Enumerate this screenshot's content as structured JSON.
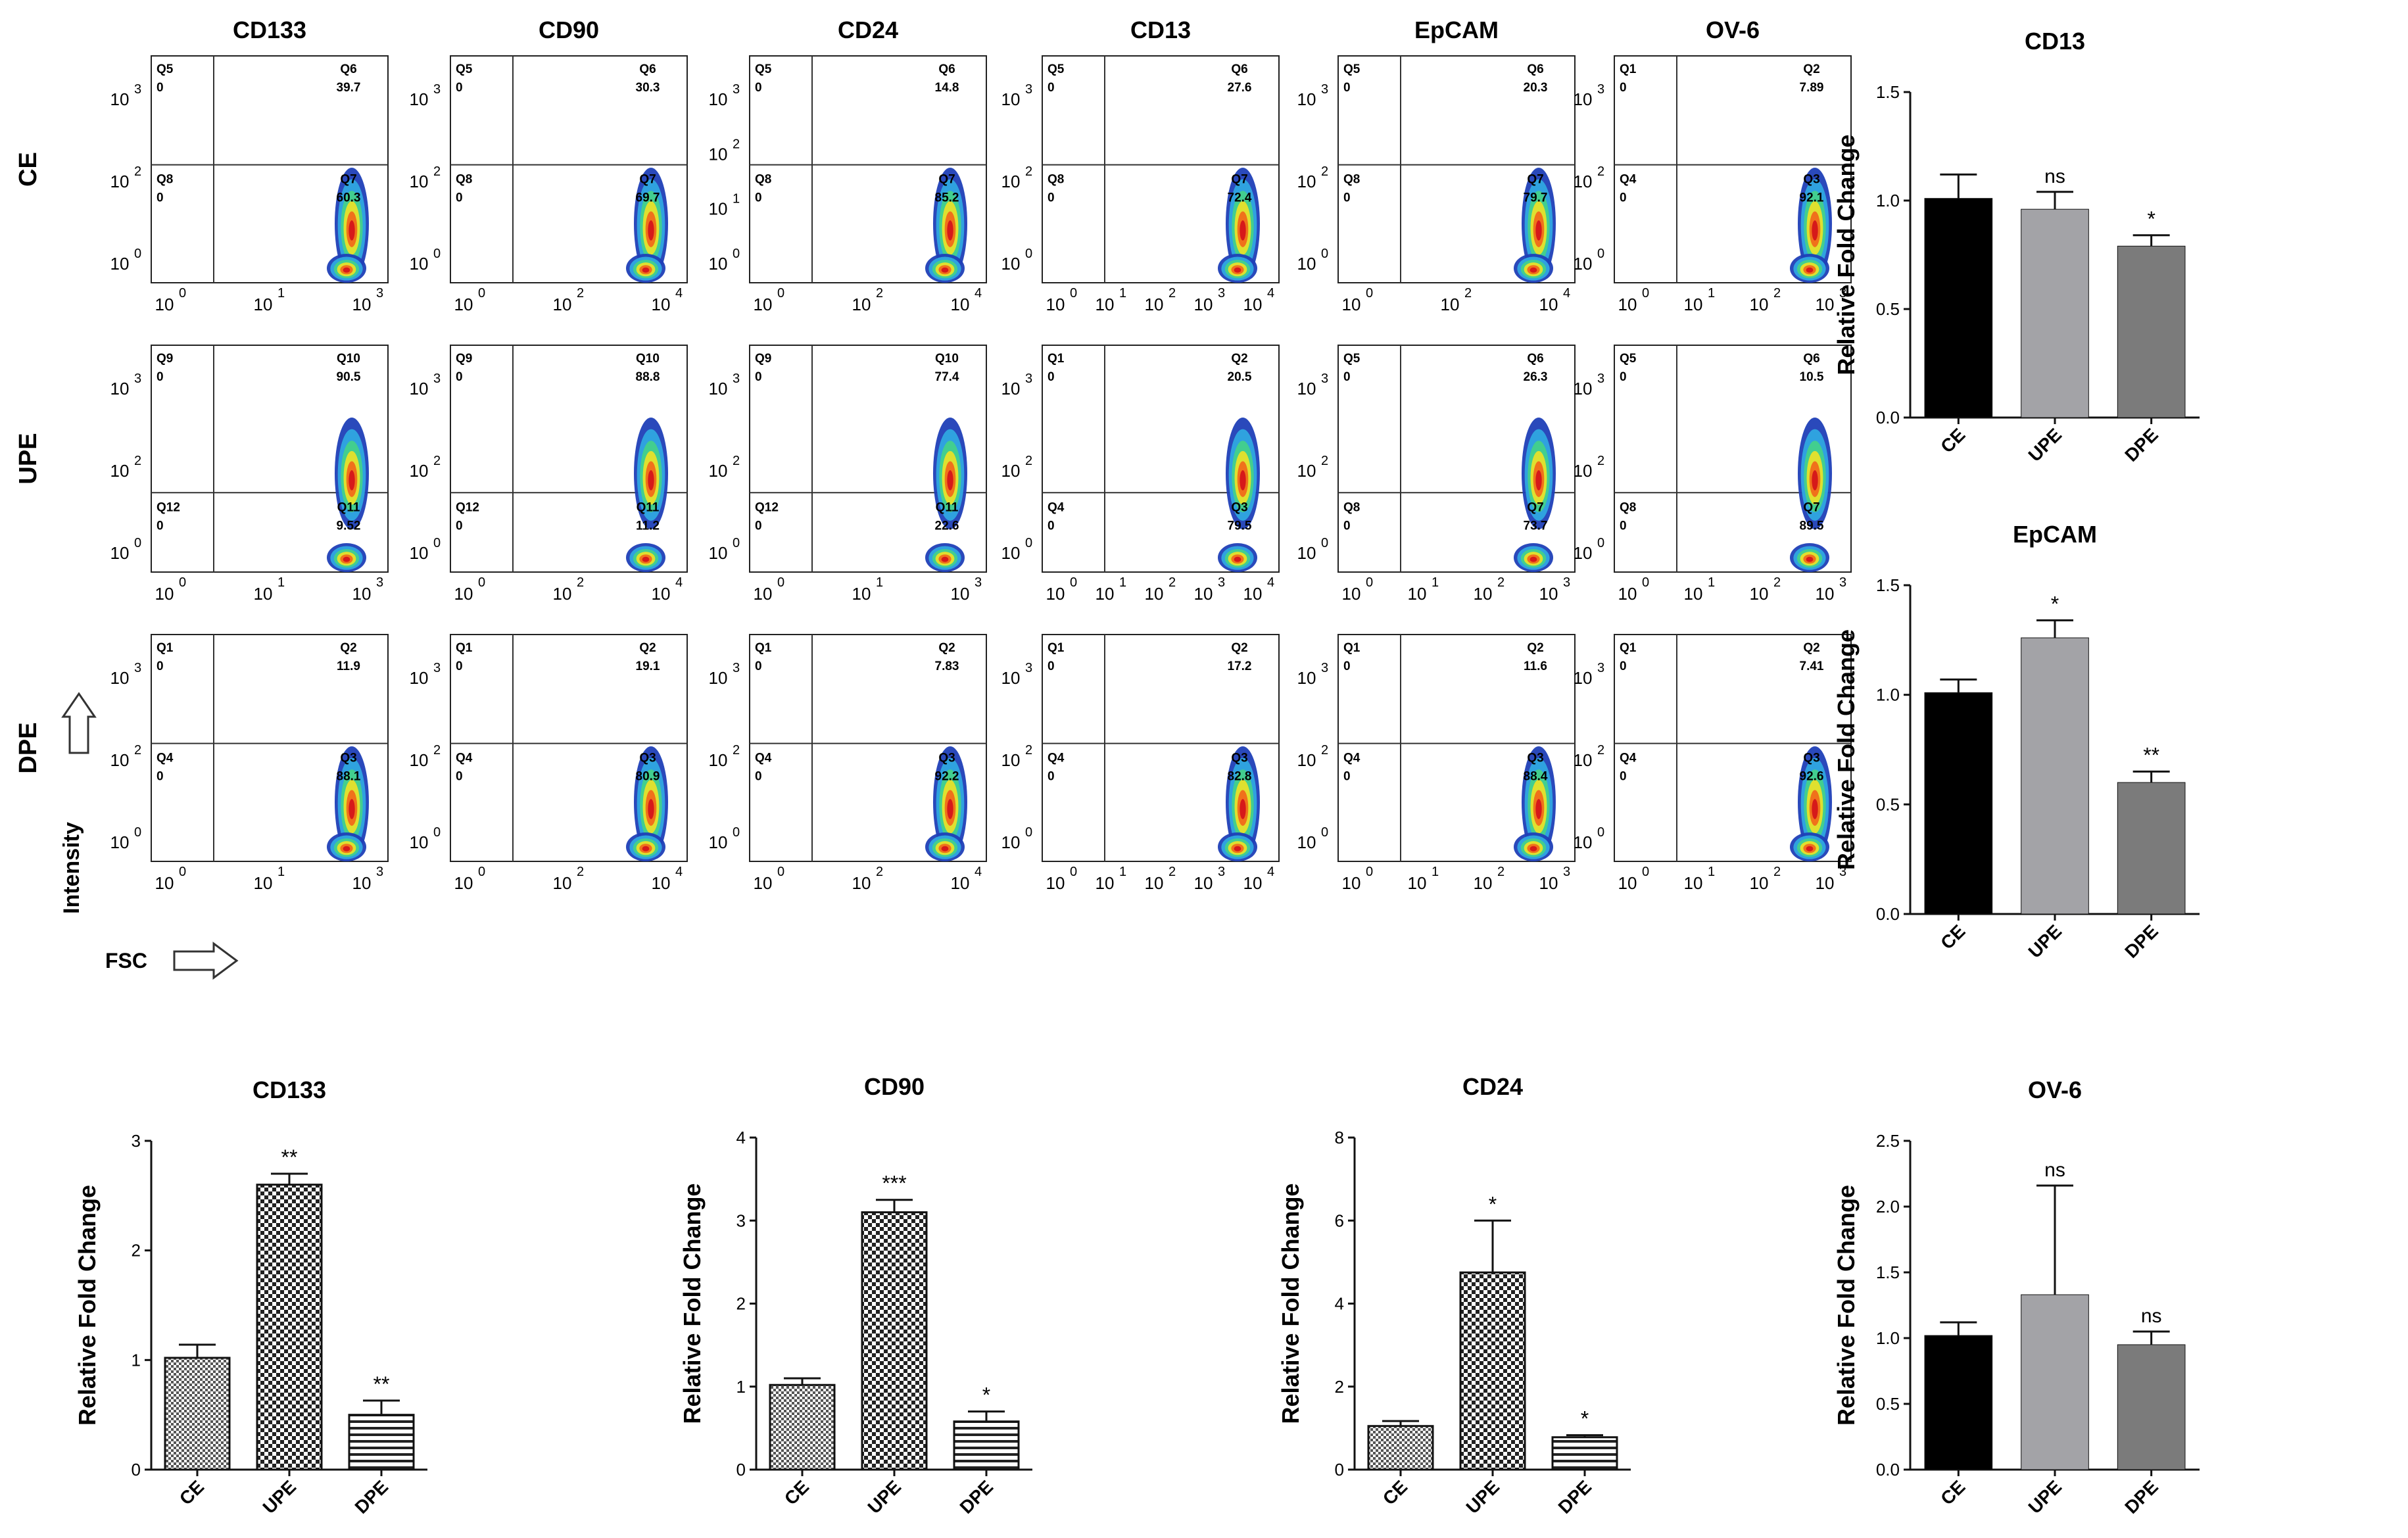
{
  "flow_panel": {
    "columns": [
      "CD133",
      "CD90",
      "CD24",
      "CD13",
      "EpCAM",
      "OV-6"
    ],
    "rows": [
      "CE",
      "UPE",
      "DPE"
    ],
    "y_axis_label": "Intensity",
    "x_axis_label": "FSC",
    "plots": [
      [
        {
          "tl": "Q5",
          "tl_v": "0",
          "tr": "Q6",
          "tr_v": "39.7",
          "bl": "Q8",
          "bl_v": "0",
          "br": "Q7",
          "br_v": "60.3",
          "x_ticks": [
            "0",
            "1",
            "3"
          ],
          "y_ticks": [
            "3",
            "2",
            "0"
          ]
        },
        {
          "tl": "Q5",
          "tl_v": "0",
          "tr": "Q6",
          "tr_v": "30.3",
          "bl": "Q8",
          "bl_v": "0",
          "br": "Q7",
          "br_v": "69.7",
          "x_ticks": [
            "0",
            "2",
            "4"
          ],
          "y_ticks": [
            "3",
            "2",
            "0"
          ]
        },
        {
          "tl": "Q5",
          "tl_v": "0",
          "tr": "Q6",
          "tr_v": "14.8",
          "bl": "Q8",
          "bl_v": "0",
          "br": "Q7",
          "br_v": "85.2",
          "x_ticks": [
            "0",
            "2",
            "4"
          ],
          "y_ticks": [
            "3",
            "2",
            "1",
            "0"
          ]
        },
        {
          "tl": "Q5",
          "tl_v": "0",
          "tr": "Q6",
          "tr_v": "27.6",
          "bl": "Q8",
          "bl_v": "0",
          "br": "Q7",
          "br_v": "72.4",
          "x_ticks": [
            "0",
            "1",
            "2",
            "3",
            "4"
          ],
          "y_ticks": [
            "3",
            "2",
            "0"
          ]
        },
        {
          "tl": "Q5",
          "tl_v": "0",
          "tr": "Q6",
          "tr_v": "20.3",
          "bl": "Q8",
          "bl_v": "0",
          "br": "Q7",
          "br_v": "79.7",
          "x_ticks": [
            "0",
            "2",
            "4"
          ],
          "y_ticks": [
            "3",
            "2",
            "0"
          ]
        },
        {
          "tl": "Q1",
          "tl_v": "0",
          "tr": "Q2",
          "tr_v": "7.89",
          "bl": "Q4",
          "bl_v": "0",
          "br": "Q3",
          "br_v": "92.1",
          "x_ticks": [
            "0",
            "1",
            "2",
            "3"
          ],
          "y_ticks": [
            "3",
            "2",
            "0"
          ]
        }
      ],
      [
        {
          "tl": "Q9",
          "tl_v": "0",
          "tr": "Q10",
          "tr_v": "90.5",
          "bl": "Q12",
          "bl_v": "0",
          "br": "Q11",
          "br_v": "9.52",
          "x_ticks": [
            "0",
            "1",
            "3"
          ],
          "y_ticks": [
            "3",
            "2",
            "0"
          ]
        },
        {
          "tl": "Q9",
          "tl_v": "0",
          "tr": "Q10",
          "tr_v": "88.8",
          "bl": "Q12",
          "bl_v": "0",
          "br": "Q11",
          "br_v": "11.2",
          "x_ticks": [
            "0",
            "2",
            "4"
          ],
          "y_ticks": [
            "3",
            "2",
            "0"
          ]
        },
        {
          "tl": "Q9",
          "tl_v": "0",
          "tr": "Q10",
          "tr_v": "77.4",
          "bl": "Q12",
          "bl_v": "0",
          "br": "Q11",
          "br_v": "22.6",
          "x_ticks": [
            "0",
            "1",
            "3"
          ],
          "y_ticks": [
            "3",
            "2",
            "0"
          ]
        },
        {
          "tl": "Q1",
          "tl_v": "0",
          "tr": "Q2",
          "tr_v": "20.5",
          "bl": "Q4",
          "bl_v": "0",
          "br": "Q3",
          "br_v": "79.5",
          "x_ticks": [
            "0",
            "1",
            "2",
            "3",
            "4"
          ],
          "y_ticks": [
            "3",
            "2",
            "0"
          ]
        },
        {
          "tl": "Q5",
          "tl_v": "0",
          "tr": "Q6",
          "tr_v": "26.3",
          "bl": "Q8",
          "bl_v": "0",
          "br": "Q7",
          "br_v": "73.7",
          "x_ticks": [
            "0",
            "1",
            "2",
            "3"
          ],
          "y_ticks": [
            "3",
            "2",
            "0"
          ]
        },
        {
          "tl": "Q5",
          "tl_v": "0",
          "tr": "Q6",
          "tr_v": "10.5",
          "bl": "Q8",
          "bl_v": "0",
          "br": "Q7",
          "br_v": "89.5",
          "x_ticks": [
            "0",
            "1",
            "2",
            "3"
          ],
          "y_ticks": [
            "3",
            "2",
            "0"
          ]
        }
      ],
      [
        {
          "tl": "Q1",
          "tl_v": "0",
          "tr": "Q2",
          "tr_v": "11.9",
          "bl": "Q4",
          "bl_v": "0",
          "br": "Q3",
          "br_v": "88.1",
          "x_ticks": [
            "0",
            "1",
            "3"
          ],
          "y_ticks": [
            "3",
            "2",
            "0"
          ]
        },
        {
          "tl": "Q1",
          "tl_v": "0",
          "tr": "Q2",
          "tr_v": "19.1",
          "bl": "Q4",
          "bl_v": "0",
          "br": "Q3",
          "br_v": "80.9",
          "x_ticks": [
            "0",
            "2",
            "4"
          ],
          "y_ticks": [
            "3",
            "2",
            "0"
          ]
        },
        {
          "tl": "Q1",
          "tl_v": "0",
          "tr": "Q2",
          "tr_v": "7.83",
          "bl": "Q4",
          "bl_v": "0",
          "br": "Q3",
          "br_v": "92.2",
          "x_ticks": [
            "0",
            "2",
            "4"
          ],
          "y_ticks": [
            "3",
            "2",
            "0"
          ]
        },
        {
          "tl": "Q1",
          "tl_v": "0",
          "tr": "Q2",
          "tr_v": "17.2",
          "bl": "Q4",
          "bl_v": "0",
          "br": "Q3",
          "br_v": "82.8",
          "x_ticks": [
            "0",
            "1",
            "2",
            "3",
            "4"
          ],
          "y_ticks": [
            "3",
            "2",
            "0"
          ]
        },
        {
          "tl": "Q1",
          "tl_v": "0",
          "tr": "Q2",
          "tr_v": "11.6",
          "bl": "Q4",
          "bl_v": "0",
          "br": "Q3",
          "br_v": "88.4",
          "x_ticks": [
            "0",
            "1",
            "2",
            "3"
          ],
          "y_ticks": [
            "3",
            "2",
            "0"
          ]
        },
        {
          "tl": "Q1",
          "tl_v": "0",
          "tr": "Q2",
          "tr_v": "7.41",
          "bl": "Q4",
          "bl_v": "0",
          "br": "Q3",
          "br_v": "92.6",
          "x_ticks": [
            "0",
            "1",
            "2",
            "3"
          ],
          "y_ticks": [
            "3",
            "2",
            "0"
          ]
        }
      ]
    ]
  },
  "colors": {
    "ce": "#000000",
    "upe": "#a3a3a7",
    "dpe": "#7b7b7b",
    "density": [
      "#1f3fb7",
      "#2fa8e0",
      "#43d18a",
      "#e8e02a",
      "#f06a1a",
      "#d4141a"
    ]
  },
  "chart_data": [
    {
      "id": "cd13",
      "type": "bar",
      "title": "CD13",
      "ylabel": "Relative Fold Change",
      "categories": [
        "CE",
        "UPE",
        "DPE"
      ],
      "values": [
        1.01,
        0.96,
        0.79
      ],
      "errors": [
        0.11,
        0.08,
        0.05
      ],
      "annotations": [
        "",
        "ns",
        "*"
      ],
      "ylim": [
        0,
        1.5
      ],
      "yticks": [
        "0.0",
        "0.5",
        "1.0",
        "1.5"
      ],
      "fill": "solid"
    },
    {
      "id": "epcam",
      "type": "bar",
      "title": "EpCAM",
      "ylabel": "Relative Fold Change",
      "categories": [
        "CE",
        "UPE",
        "DPE"
      ],
      "values": [
        1.01,
        1.26,
        0.6
      ],
      "errors": [
        0.06,
        0.08,
        0.05
      ],
      "annotations": [
        "",
        "*",
        "**"
      ],
      "ylim": [
        0,
        1.5
      ],
      "yticks": [
        "0.0",
        "0.5",
        "1.0",
        "1.5"
      ],
      "fill": "solid"
    },
    {
      "id": "cd133",
      "type": "bar",
      "title": "CD133",
      "ylabel": "Relative Fold Change",
      "categories": [
        "CE",
        "UPE",
        "DPE"
      ],
      "values": [
        1.02,
        2.6,
        0.5
      ],
      "errors": [
        0.12,
        0.1,
        0.13
      ],
      "annotations": [
        "",
        "**",
        "**"
      ],
      "ylim": [
        0,
        3
      ],
      "yticks": [
        "0",
        "1",
        "2",
        "3"
      ],
      "fill": "pattern"
    },
    {
      "id": "cd90",
      "type": "bar",
      "title": "CD90",
      "ylabel": "Relative Fold Change",
      "categories": [
        "CE",
        "UPE",
        "DPE"
      ],
      "values": [
        1.02,
        3.1,
        0.58
      ],
      "errors": [
        0.08,
        0.15,
        0.12
      ],
      "annotations": [
        "",
        "***",
        "*"
      ],
      "ylim": [
        0,
        4
      ],
      "yticks": [
        "0",
        "1",
        "2",
        "3",
        "4"
      ],
      "fill": "pattern"
    },
    {
      "id": "cd24",
      "type": "bar",
      "title": "CD24",
      "ylabel": "Relative Fold Change",
      "categories": [
        "CE",
        "UPE",
        "DPE"
      ],
      "values": [
        1.05,
        4.75,
        0.78
      ],
      "errors": [
        0.12,
        1.25,
        0.05
      ],
      "annotations": [
        "",
        "*",
        "*"
      ],
      "ylim": [
        0,
        8
      ],
      "yticks": [
        "0",
        "2",
        "4",
        "6",
        "8"
      ],
      "fill": "pattern"
    },
    {
      "id": "ov6",
      "type": "bar",
      "title": "OV-6",
      "ylabel": "Relative Fold Change",
      "categories": [
        "CE",
        "UPE",
        "DPE"
      ],
      "values": [
        1.02,
        1.33,
        0.95
      ],
      "errors": [
        0.1,
        0.83,
        0.1
      ],
      "annotations": [
        "",
        "ns",
        "ns"
      ],
      "ylim": [
        0,
        2.5
      ],
      "yticks": [
        "0.0",
        "0.5",
        "1.0",
        "1.5",
        "2.0",
        "2.5"
      ],
      "fill": "solid"
    }
  ]
}
